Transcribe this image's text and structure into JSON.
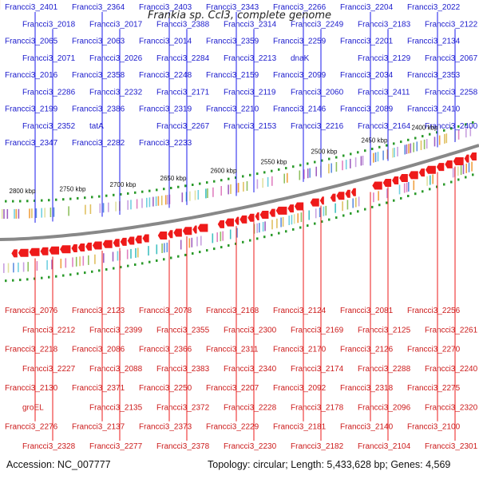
{
  "title": "Frankia sp. CcI3, complete genome",
  "footer": {
    "accession": "Accession: NC_007777",
    "summary": "Topology: circular; Length: 5,433,628 bp; Genes: 4,569"
  },
  "colors": {
    "forward": "#1a1aee",
    "reverse": "#ee1a1a",
    "backbone": "#888888",
    "tick": "#2a9a2a"
  },
  "kbp_ticks": [
    "2800 kbp",
    "2750 kbp",
    "2700 kbp",
    "2650 kbp",
    "2600 kbp",
    "2550 kbp",
    "2500 kbp",
    "2450 kbp",
    "2400 kbp"
  ],
  "top_labels": [
    "Francci3_2401",
    "Francci3_2364",
    "Francci3_2403",
    "Francci3_2343",
    "Francci3_2266",
    "Francci3_2204",
    "Francci3_2022",
    "Francci3_2018",
    "Francci3_2017",
    "Francci3_2388",
    "Francci3_2314",
    "Francci3_2249",
    "Francci3_2183",
    "Francci3_2122",
    "Francci3_2065",
    "Francci3_2063",
    "Francci3_2014",
    "Francci3_2359",
    "Francci3_2259",
    "Francci3_2201",
    "Francci3_2134",
    "Francci3_2071",
    "Francci3_2026",
    "Francci3_2284",
    "Francci3_2213",
    "dnaK",
    "Francci3_2129",
    "Francci3_2067",
    "Francci3_2016",
    "Francci3_2358",
    "Francci3_2248",
    "Francci3_2159",
    "Francci3_2099",
    "Francci3_2034",
    "Francci3_2353",
    "Francci3_2286",
    "Francci3_2232",
    "Francci3_2171",
    "Francci3_2119",
    "Francci3_2060",
    "Francci3_2411",
    "Francci3_2258",
    "Francci3_2199",
    "Francci3_2386",
    "Francci3_2319",
    "Francci3_2210",
    "Francci3_2146",
    "Francci3_2089",
    "Francci3_2410",
    "Francci3_2352",
    "tatA",
    "Francci3_2267",
    "Francci3_2153",
    "Francci3_2216",
    "Francci3_2164",
    "Francci3_2400",
    "Francci3_2347",
    "Francci3_2282",
    "Francci3_2233"
  ],
  "bottom_labels": [
    "Francci3_2076",
    "Francci3_2123",
    "Francci3_2078",
    "Francci3_2168",
    "Francci3_2124",
    "Francci3_2081",
    "Francci3_2256",
    "Francci3_2212",
    "Francci3_2399",
    "Francci3_2355",
    "Francci3_2300",
    "Francci3_2169",
    "Francci3_2125",
    "Francci3_2261",
    "Francci3_2218",
    "Francci3_2086",
    "Francci3_2366",
    "Francci3_2311",
    "Francci3_2170",
    "Francci3_2126",
    "Francci3_2270",
    "Francci3_2227",
    "Francci3_2088",
    "Francci3_2383",
    "Francci3_2340",
    "Francci3_2174",
    "Francci3_2288",
    "Francci3_2240",
    "Francci3_2130",
    "Francci3_2371",
    "Francci3_2250",
    "Francci3_2207",
    "Francci3_2092",
    "Francci3_2318",
    "Francci3_2275",
    "groEL",
    "Francci3_2135",
    "Francci3_2372",
    "Francci3_2228",
    "Francci3_2178",
    "Francci3_2096",
    "Francci3_2320",
    "Francci3_2276",
    "Francci3_2137",
    "Francci3_2373",
    "Francci3_2229",
    "Francci3_2181",
    "Francci3_2140",
    "Francci3_2100",
    "Francci3_2328",
    "Francci3_2277",
    "Francci3_2378",
    "Francci3_2230",
    "Francci3_2182",
    "Francci3_2104",
    "Francci3_2301"
  ]
}
